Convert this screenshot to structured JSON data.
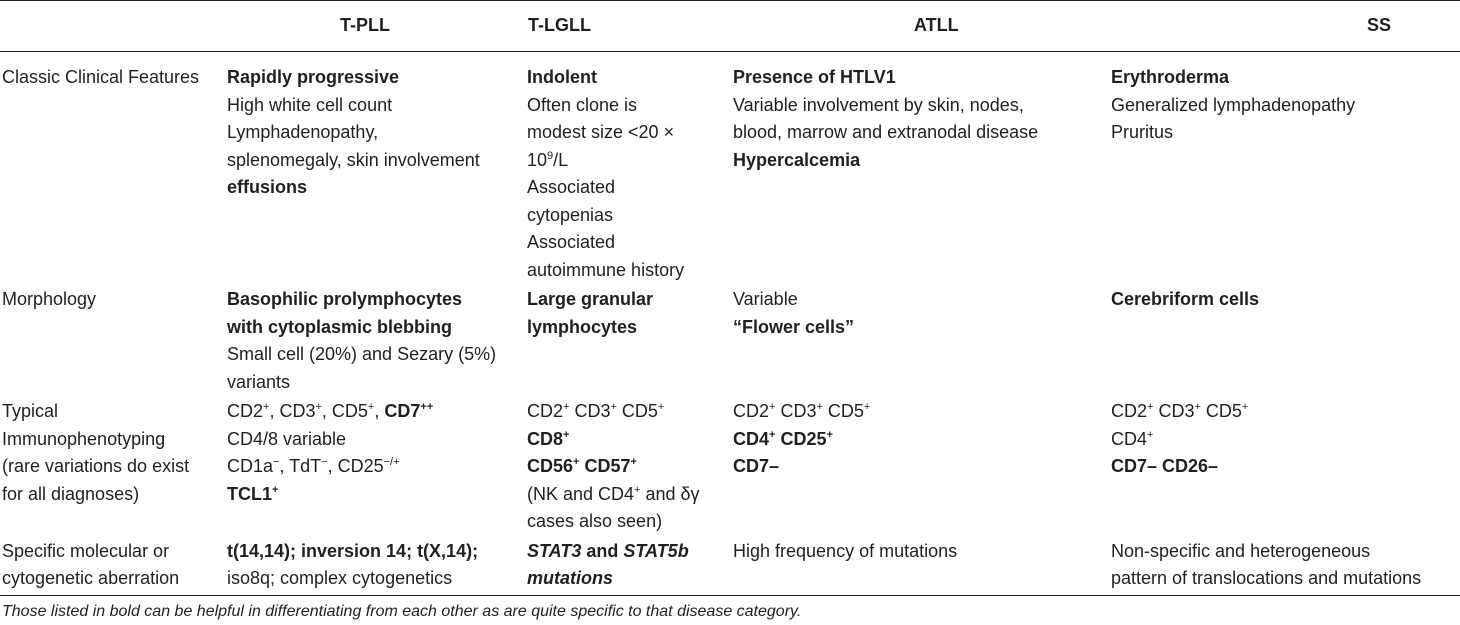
{
  "headers": [
    "",
    "T-PLL",
    "T-LGLL",
    "ATLL",
    "SS"
  ],
  "rows": [
    {
      "label": "Classic Clinical Features",
      "cells": [
        [
          [
            {
              "t": "Rapidly progressive",
              "s": "b"
            }
          ],
          [
            {
              "t": "High white cell count"
            }
          ],
          [
            {
              "t": "Lymphadenopathy,"
            }
          ],
          [
            {
              "t": "splenomegaly, skin involvement"
            }
          ],
          [
            {
              "t": "effusions",
              "s": "b"
            }
          ]
        ],
        [
          [
            {
              "t": "Indolent",
              "s": "b"
            }
          ],
          [
            {
              "t": "Often clone is"
            }
          ],
          [
            {
              "t": "modest size <20 ×"
            }
          ],
          [
            {
              "t": "10"
            },
            {
              "t": "9",
              "s": "sup"
            },
            {
              "t": "/L"
            }
          ],
          [
            {
              "t": "Associated"
            }
          ],
          [
            {
              "t": "cytopenias"
            }
          ],
          [
            {
              "t": "Associated"
            }
          ],
          [
            {
              "t": "autoimmune history"
            }
          ]
        ],
        [
          [
            {
              "t": "Presence of HTLV1",
              "s": "b"
            }
          ],
          [
            {
              "t": "Variable involvement by skin, nodes,"
            }
          ],
          [
            {
              "t": "blood, marrow and extranodal disease"
            }
          ],
          [
            {
              "t": "Hypercalcemia",
              "s": "b"
            }
          ]
        ],
        [
          [
            {
              "t": "Erythroderma",
              "s": "b"
            }
          ],
          [
            {
              "t": "Generalized lymphadenopathy"
            }
          ],
          [
            {
              "t": "Pruritus"
            }
          ]
        ]
      ]
    },
    {
      "label": "Morphology",
      "cells": [
        [
          [
            {
              "t": "Basophilic prolymphocytes",
              "s": "b"
            }
          ],
          [
            {
              "t": "with cytoplasmic blebbing",
              "s": "b"
            }
          ],
          [
            {
              "t": "Small cell (20%) and Sezary (5%)"
            }
          ],
          [
            {
              "t": "variants"
            }
          ]
        ],
        [
          [
            {
              "t": "Large granular",
              "s": "b"
            }
          ],
          [
            {
              "t": "lymphocytes",
              "s": "b"
            }
          ]
        ],
        [
          [
            {
              "t": "Variable"
            }
          ],
          [
            {
              "t": "“Flower cells”",
              "s": "b"
            }
          ]
        ],
        [
          [
            {
              "t": "Cerebriform cells",
              "s": "b"
            }
          ]
        ]
      ]
    },
    {
      "label": "Typical Immunophenotyping (rare variations do exist for all diagnoses)",
      "label_lines": [
        "Typical",
        "Immunophenotyping",
        "(rare variations do exist",
        "for all diagnoses)"
      ],
      "cells": [
        [
          [
            {
              "t": "CD2"
            },
            {
              "t": "+",
              "s": "sup"
            },
            {
              "t": ", CD3"
            },
            {
              "t": "+",
              "s": "sup"
            },
            {
              "t": ", CD5"
            },
            {
              "t": "+",
              "s": "sup"
            },
            {
              "t": ", "
            },
            {
              "t": "CD7",
              "s": "b"
            },
            {
              "t": "++",
              "s": "bsup"
            }
          ],
          [
            {
              "t": "CD4/8 variable"
            }
          ],
          [
            {
              "t": "CD1a"
            },
            {
              "t": "−",
              "s": "sup"
            },
            {
              "t": ", TdT"
            },
            {
              "t": "−",
              "s": "sup"
            },
            {
              "t": ", CD25"
            },
            {
              "t": "−/+",
              "s": "sup"
            }
          ],
          [
            {
              "t": "TCL1",
              "s": "b"
            },
            {
              "t": "+",
              "s": "bsup"
            }
          ]
        ],
        [
          [
            {
              "t": "CD2"
            },
            {
              "t": "+",
              "s": "sup"
            },
            {
              "t": " CD3"
            },
            {
              "t": "+",
              "s": "sup"
            },
            {
              "t": " CD5"
            },
            {
              "t": "+",
              "s": "sup"
            }
          ],
          [
            {
              "t": "CD8",
              "s": "b"
            },
            {
              "t": "+",
              "s": "bsup"
            }
          ],
          [
            {
              "t": "CD56",
              "s": "b"
            },
            {
              "t": "+",
              "s": "bsup"
            },
            {
              "t": " CD57",
              "s": "b"
            },
            {
              "t": "+",
              "s": "bsup"
            }
          ],
          [
            {
              "t": "(NK and CD4"
            },
            {
              "t": "+",
              "s": "sup"
            },
            {
              "t": " and δγ"
            }
          ],
          [
            {
              "t": "cases also seen)"
            }
          ]
        ],
        [
          [
            {
              "t": "CD2"
            },
            {
              "t": "+",
              "s": "sup"
            },
            {
              "t": " CD3"
            },
            {
              "t": "+",
              "s": "sup"
            },
            {
              "t": " CD5"
            },
            {
              "t": "+",
              "s": "sup"
            }
          ],
          [
            {
              "t": "CD4",
              "s": "b"
            },
            {
              "t": "+",
              "s": "bsup"
            },
            {
              "t": " CD25",
              "s": "b"
            },
            {
              "t": "+",
              "s": "bsup"
            }
          ],
          [
            {
              "t": "CD7–",
              "s": "b"
            }
          ]
        ],
        [
          [
            {
              "t": "CD2"
            },
            {
              "t": "+",
              "s": "sup"
            },
            {
              "t": " CD3"
            },
            {
              "t": "+",
              "s": "sup"
            },
            {
              "t": " CD5"
            },
            {
              "t": "+",
              "s": "sup"
            }
          ],
          [
            {
              "t": "CD4"
            },
            {
              "t": "+",
              "s": "sup"
            }
          ],
          [
            {
              "t": "CD7– CD26–",
              "s": "b"
            }
          ]
        ]
      ]
    },
    {
      "label": "Specific molecular or cytogenetic aberration",
      "label_lines": [
        "Specific molecular or",
        "cytogenetic aberration"
      ],
      "cells": [
        [
          [
            {
              "t": "t(14,14); inversion 14; t(X,14);",
              "s": "b"
            }
          ],
          [
            {
              "t": "iso8q; complex cytogenetics"
            }
          ]
        ],
        [
          [
            {
              "t": "STAT3",
              "s": "bi"
            },
            {
              "t": " and ",
              "s": "b"
            },
            {
              "t": "STAT5b",
              "s": "bi"
            }
          ],
          [
            {
              "t": "mutations",
              "s": "bi"
            }
          ]
        ],
        [
          [
            {
              "t": "High frequency of mutations"
            }
          ]
        ],
        [
          [
            {
              "t": "Non-specific and heterogeneous"
            }
          ],
          [
            {
              "t": "pattern of translocations and mutations"
            }
          ]
        ]
      ]
    }
  ],
  "footnote": "Those listed in bold can be helpful in differentiating from each other as are quite specific to that disease category."
}
